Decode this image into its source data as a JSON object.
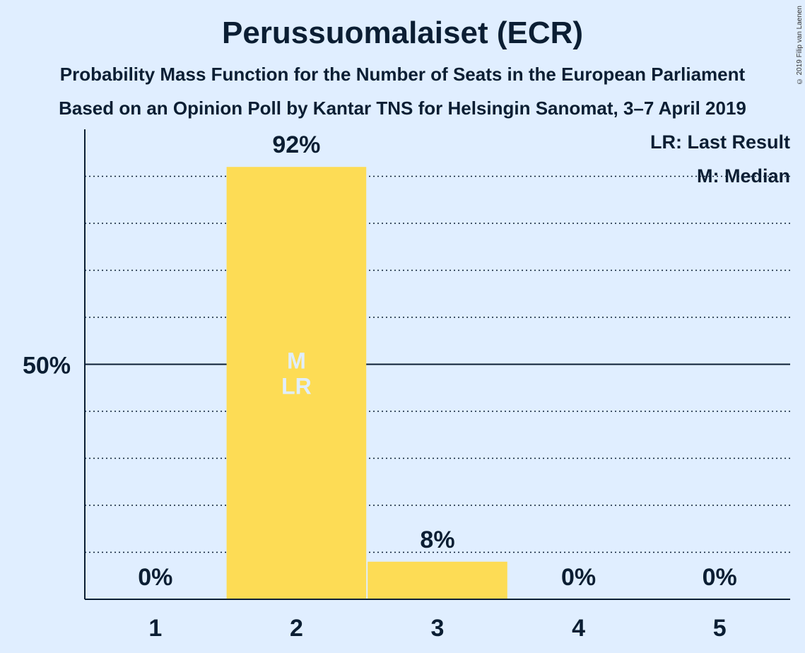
{
  "title": "Perussuomalaiset (ECR)",
  "subtitle_line1": "Probability Mass Function for the Number of Seats in the European Parliament",
  "subtitle_line2": "Based on an Opinion Poll by Kantar TNS for Helsingin Sanomat, 3–7 April 2019",
  "copyright": "© 2019 Filip van Laenen",
  "legend": {
    "last_result": "LR: Last Result",
    "median": "M: Median"
  },
  "colors": {
    "bar": "#fddc55",
    "background": "#e0eeff",
    "text": "#0b1e33",
    "marker_text": "#e0eeff"
  },
  "chart_data": {
    "type": "bar",
    "categories": [
      "1",
      "2",
      "3",
      "4",
      "5"
    ],
    "values": [
      0,
      92,
      8,
      0,
      0
    ],
    "value_labels": [
      "0%",
      "92%",
      "8%",
      "0%",
      "0%"
    ],
    "ylim": [
      0,
      100
    ],
    "yticks": [
      {
        "value": 50,
        "label": "50%"
      }
    ],
    "gridlines": [
      10,
      20,
      30,
      40,
      60,
      70,
      80,
      90
    ],
    "median_seats": "2",
    "last_result_seats": "2",
    "median_marker": "M",
    "last_result_marker": "LR"
  }
}
